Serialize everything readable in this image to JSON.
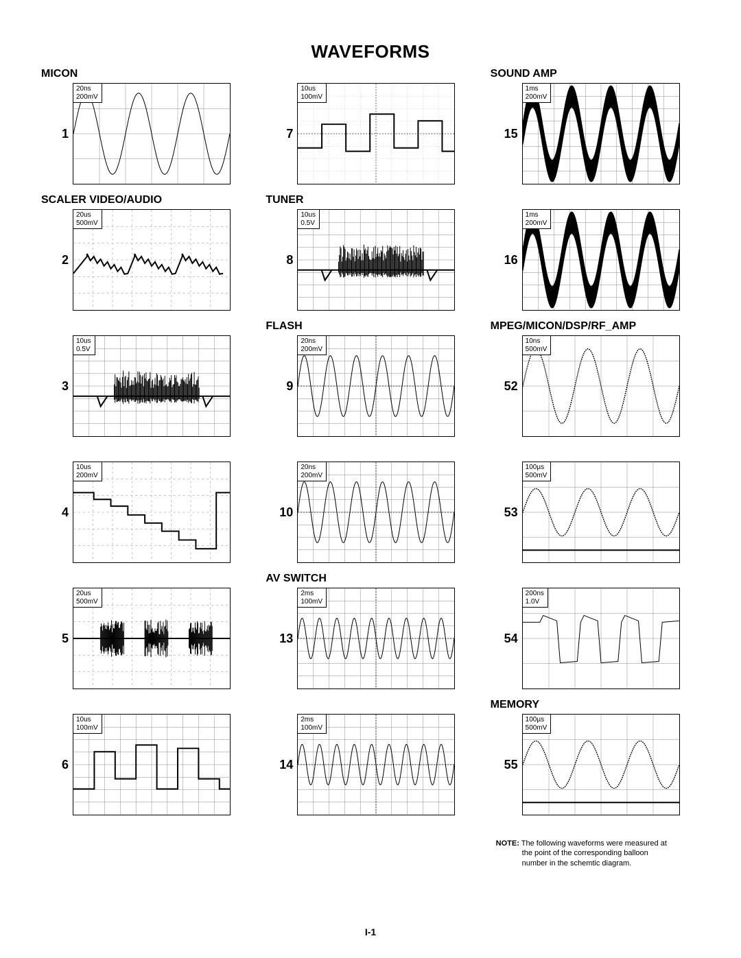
{
  "title": "WAVEFORMS",
  "pageNumber": "I-1",
  "note": {
    "label": "NOTE:",
    "text1": "The following waveforms were measured at",
    "text2": "the point of the corresponding balloon",
    "text3": "number in the schemtic diagram."
  },
  "cells": [
    {
      "header": "MICON",
      "index": "1",
      "timebase": "20ns",
      "voltdiv": "200mV",
      "wave": "sine3",
      "gridStyle": "coarse"
    },
    {
      "header": "",
      "index": "7",
      "timebase": "10us",
      "voltdiv": "100mV",
      "wave": "step-noise",
      "gridStyle": "center-dash"
    },
    {
      "header": "SOUND AMP",
      "index": "15",
      "timebase": "1ms",
      "voltdiv": "200mV",
      "wave": "thick-sine",
      "gridStyle": "fine"
    },
    {
      "header": "SCALER VIDEO/AUDIO",
      "index": "2",
      "timebase": "20us",
      "voltdiv": "500mV",
      "wave": "saw-noise",
      "gridStyle": "dashed"
    },
    {
      "header": "TUNER",
      "index": "8",
      "timebase": "10us",
      "voltdiv": "0.5V",
      "wave": "burst-noise",
      "gridStyle": "fine"
    },
    {
      "header": "",
      "index": "16",
      "timebase": "1ms",
      "voltdiv": "200mV",
      "wave": "thick-sine",
      "gridStyle": "fine"
    },
    {
      "header": "",
      "index": "3",
      "timebase": "10us",
      "voltdiv": "0.5V",
      "wave": "burst-noise",
      "gridStyle": "fine"
    },
    {
      "header": "FLASH",
      "index": "9",
      "timebase": "20ns",
      "voltdiv": "200mV",
      "wave": "sine6",
      "gridStyle": "fine-center"
    },
    {
      "header": "MPEG/MICON/DSP/RF_AMP",
      "index": "52",
      "timebase": "10ns",
      "voltdiv": "500mV",
      "wave": "dotted-sine3",
      "gridStyle": "coarse-dots"
    },
    {
      "header": "",
      "index": "4",
      "timebase": "10us",
      "voltdiv": "200mV",
      "wave": "staircase",
      "gridStyle": "dashed"
    },
    {
      "header": "",
      "index": "10",
      "timebase": "20ns",
      "voltdiv": "200mV",
      "wave": "sine6",
      "gridStyle": "fine-center"
    },
    {
      "header": "",
      "index": "53",
      "timebase": "100µs",
      "voltdiv": "500mV",
      "wave": "dotted-sine3-flat",
      "gridStyle": "coarse-dots"
    },
    {
      "header": "",
      "index": "5",
      "timebase": "20us",
      "voltdiv": "500mV",
      "wave": "burst-line",
      "gridStyle": "dashed"
    },
    {
      "header": "AV SWITCH",
      "index": "13",
      "timebase": "2ms",
      "voltdiv": "100mV",
      "wave": "sine9",
      "gridStyle": "fine-center"
    },
    {
      "header": "",
      "index": "54",
      "timebase": "200ns",
      "voltdiv": "1.0V",
      "wave": "distorted-square",
      "gridStyle": "coarse-dots"
    },
    {
      "header": "",
      "index": "6",
      "timebase": "10us",
      "voltdiv": "100mV",
      "wave": "step-noise2",
      "gridStyle": "fine"
    },
    {
      "header": "",
      "index": "14",
      "timebase": "2ms",
      "voltdiv": "100mV",
      "wave": "sine9",
      "gridStyle": "fine-center"
    },
    {
      "header": "MEMORY",
      "index": "55",
      "timebase": "100µs",
      "voltdiv": "500mV",
      "wave": "dotted-sine3-flat",
      "gridStyle": "coarse-dots"
    }
  ]
}
